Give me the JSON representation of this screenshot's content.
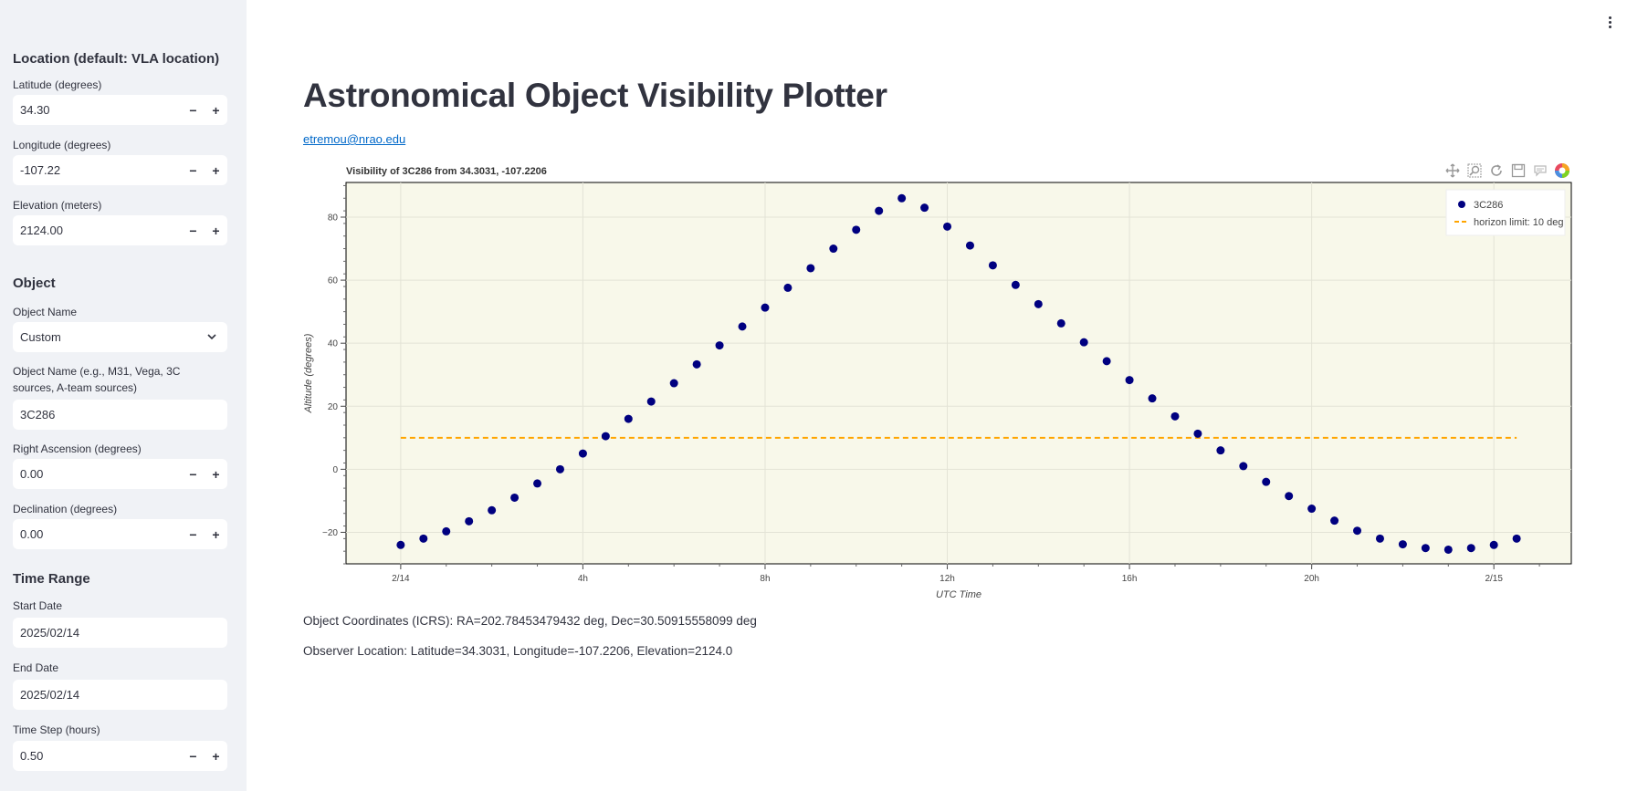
{
  "sidebar": {
    "location_header": "Location (default: VLA location)",
    "latitude": {
      "label": "Latitude (degrees)",
      "value": "34.30"
    },
    "longitude": {
      "label": "Longitude (degrees)",
      "value": "-107.22"
    },
    "elevation": {
      "label": "Elevation (meters)",
      "value": "2124.00"
    },
    "object_header": "Object",
    "object_name_select": {
      "label": "Object Name",
      "value": "Custom"
    },
    "object_name_text": {
      "label": "Object Name (e.g., M31, Vega, 3C sources, A-team sources)",
      "value": "3C286"
    },
    "ra": {
      "label": "Right Ascension (degrees)",
      "value": "0.00"
    },
    "dec": {
      "label": "Declination (degrees)",
      "value": "0.00"
    },
    "time_header": "Time Range",
    "start_date": {
      "label": "Start Date",
      "value": "2025/02/14"
    },
    "end_date": {
      "label": "End Date",
      "value": "2025/02/14"
    },
    "time_step": {
      "label": "Time Step (hours)",
      "value": "0.50"
    },
    "minus": "−",
    "plus": "+"
  },
  "main": {
    "title": "Astronomical Object Visibility Plotter",
    "email": "etremou@nrao.edu",
    "coords_text": "Object Coordinates (ICRS): RA=202.78453479432 deg, Dec=30.50915558099 deg",
    "observer_text": "Observer Location: Latitude=34.3031, Longitude=-107.2206, Elevation=2124.0"
  },
  "toolbar_icons": [
    "pan-icon",
    "box-zoom-icon",
    "reset-icon",
    "save-icon",
    "hover-icon",
    "bokeh-logo-icon"
  ],
  "chart_data": {
    "type": "scatter",
    "title": "Visibility of 3C286 from 34.3031, -107.2206",
    "xlabel": "UTC Time",
    "ylabel": "Altitude (degrees)",
    "x_ticks": [
      "2/14",
      "4h",
      "8h",
      "12h",
      "16h",
      "20h",
      "2/15"
    ],
    "y_ticks": [
      -20,
      0,
      20,
      40,
      60,
      80
    ],
    "ylim": [
      -30,
      91
    ],
    "xlim_hours": [
      -1.2,
      25.7
    ],
    "grid": true,
    "legend_position": "top-right",
    "colors": {
      "series": "#000080",
      "horizon": "#ffa500",
      "plot_bg": "#f8f8ea"
    },
    "series": [
      {
        "name": "3C286",
        "x_hours": [
          0,
          0.5,
          1,
          1.5,
          2,
          2.5,
          3,
          3.5,
          4,
          4.5,
          5,
          5.5,
          6,
          6.5,
          7,
          7.5,
          8,
          8.5,
          9,
          9.5,
          10,
          10.5,
          11,
          11.5,
          12,
          12.5,
          13,
          13.5,
          14,
          14.5,
          15,
          15.5,
          16,
          16.5,
          17,
          17.5,
          18,
          18.5,
          19,
          19.5,
          20,
          20.5,
          21,
          21.5,
          22,
          22.5,
          23,
          23.5,
          24,
          24.5
        ],
        "y": [
          -24,
          -22,
          -19.7,
          -16.5,
          -13,
          -9,
          -4.5,
          0,
          5,
          10.5,
          16,
          21.5,
          27.3,
          33.3,
          39.3,
          45.3,
          51.3,
          57.6,
          63.8,
          70,
          76,
          82,
          86,
          83,
          77,
          71,
          64.7,
          58.5,
          52.4,
          46.3,
          40.3,
          34.3,
          28.3,
          22.5,
          16.8,
          11.3,
          6,
          1,
          -4,
          -8.5,
          -12.5,
          -16.3,
          -19.5,
          -22,
          -23.8,
          -25,
          -25.5,
          -25,
          -24,
          -22
        ]
      },
      {
        "name": "horizon limit: 10 deg",
        "x_hours": [
          0,
          24.5
        ],
        "y": [
          10,
          10
        ]
      }
    ]
  }
}
